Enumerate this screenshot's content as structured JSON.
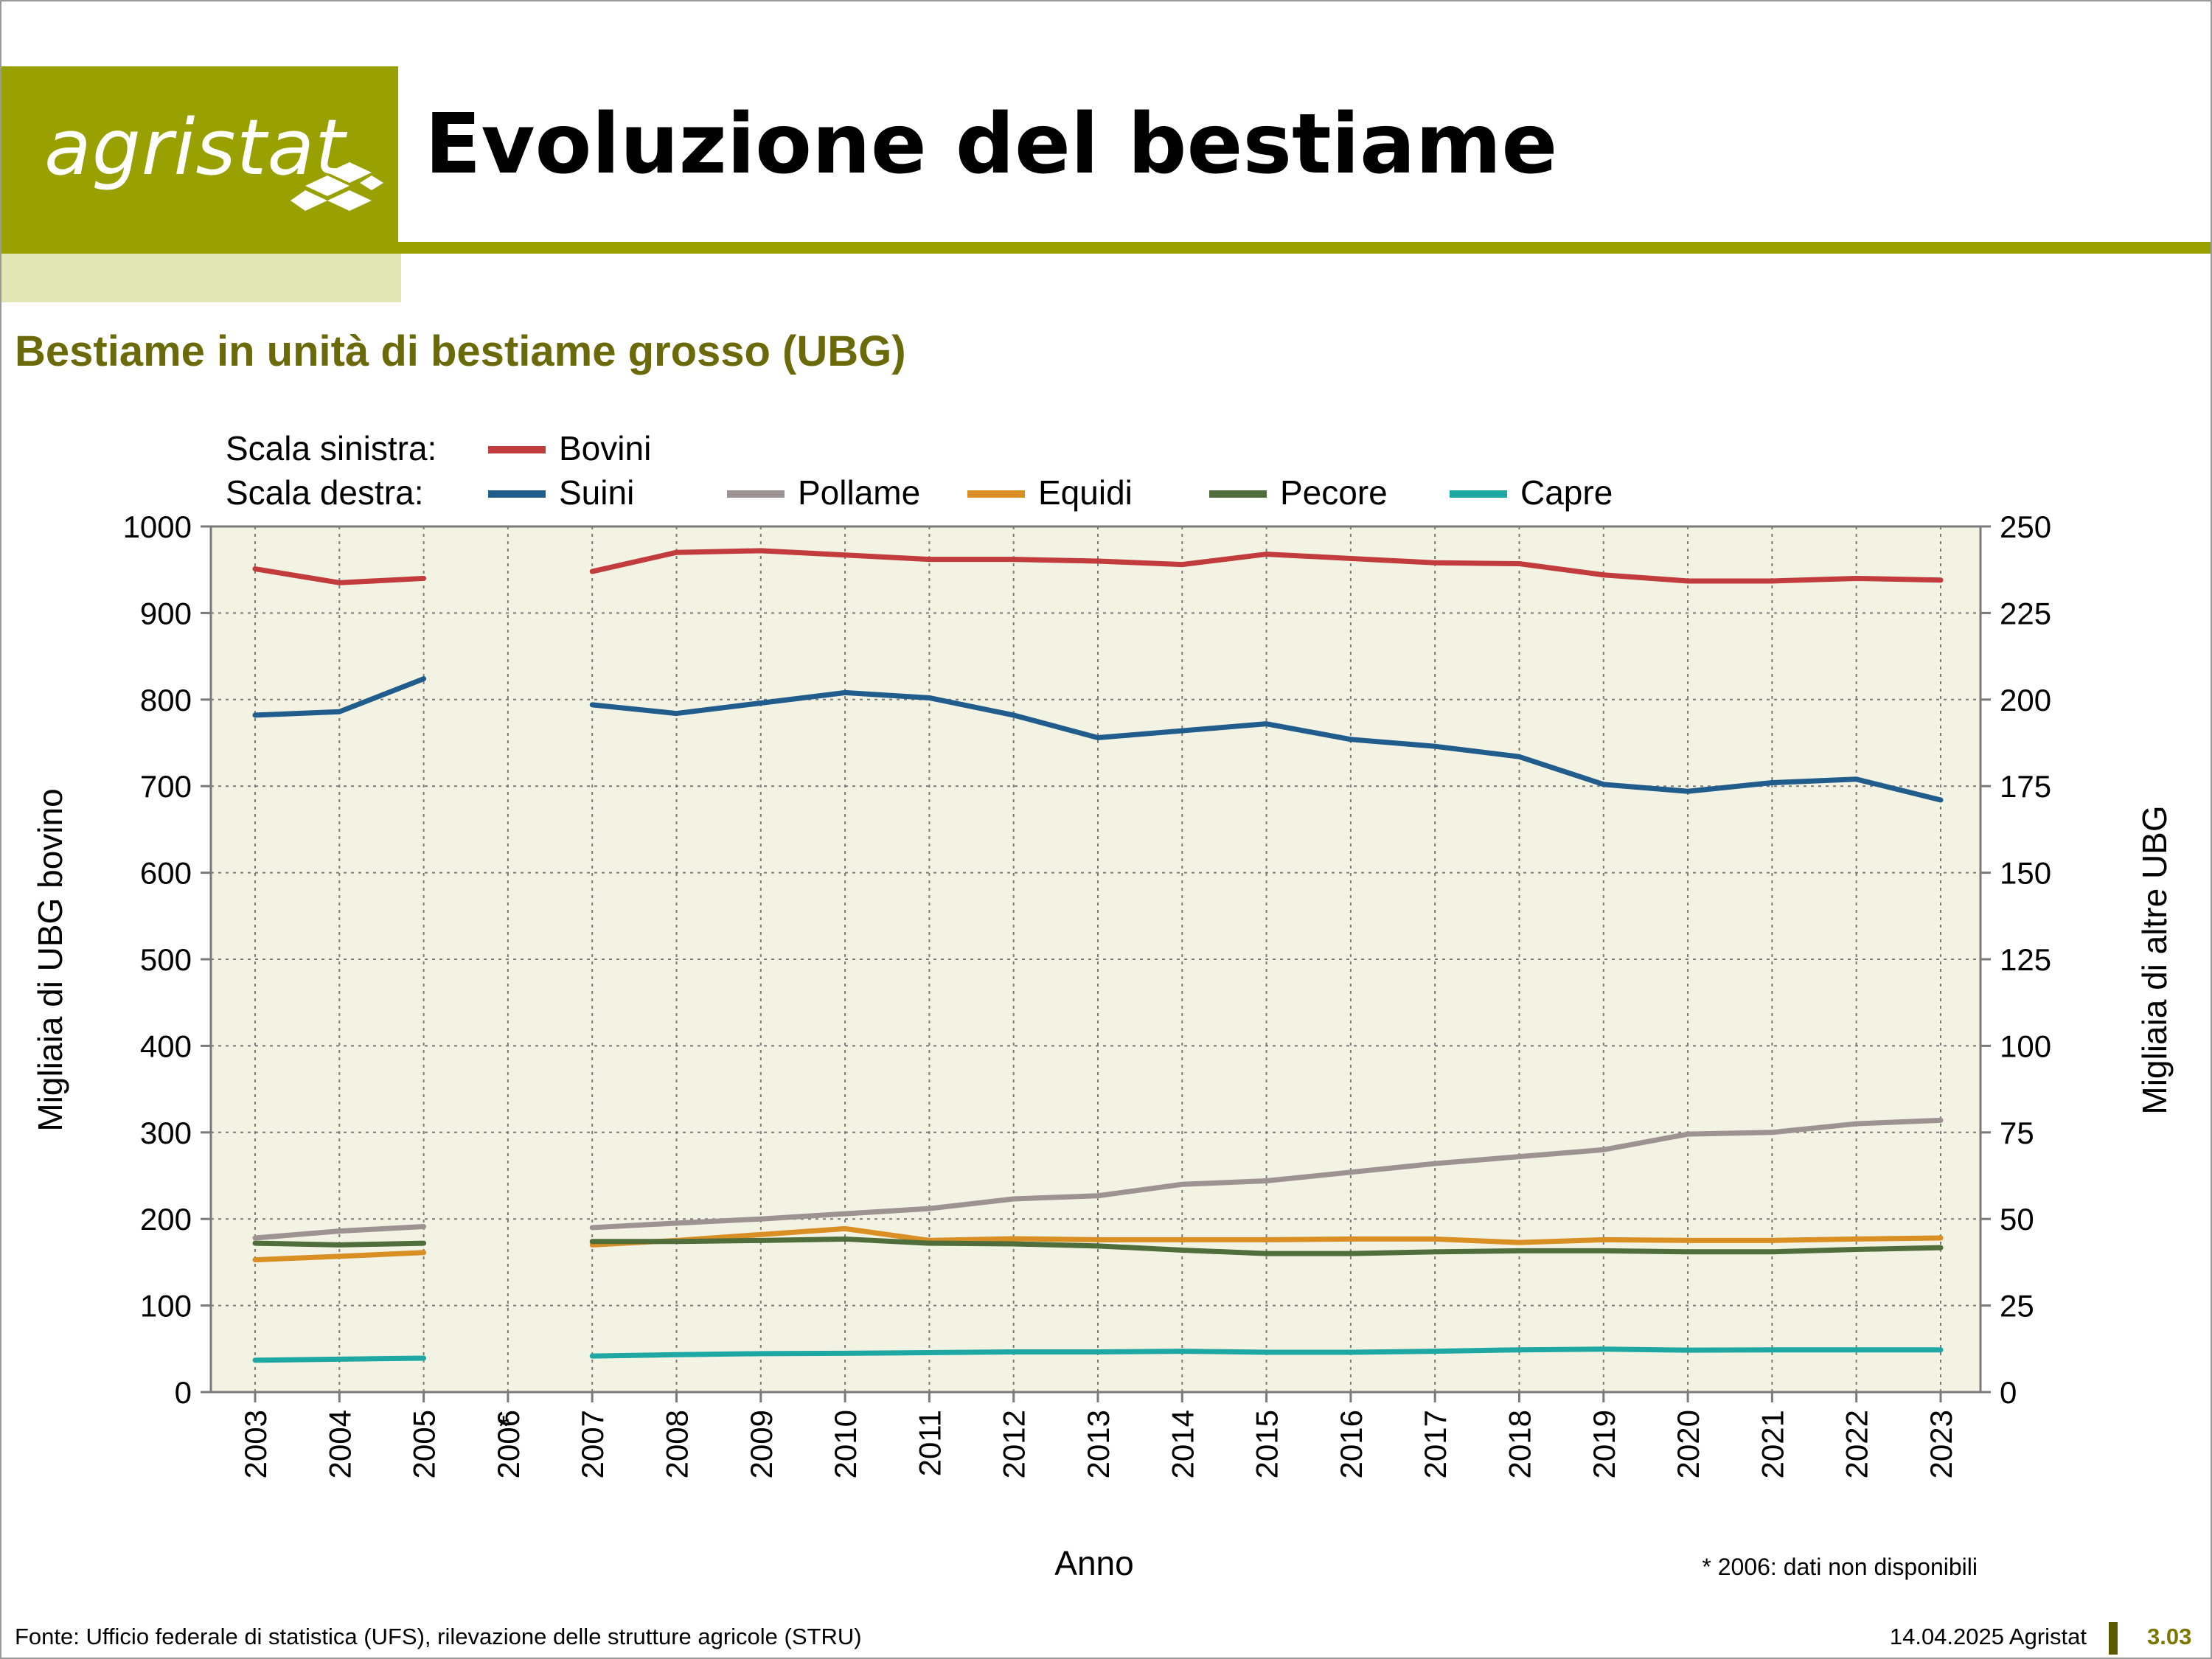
{
  "header": {
    "logo_text": "agristat",
    "title": "Evoluzione del bestiame",
    "brand_color": "#99a100"
  },
  "chart_title": "Bestiame in unità di bestiame grosso (UBG)",
  "legend": {
    "left_scale_label": "Scala sinistra:",
    "right_scale_label": "Scala destra:"
  },
  "footnote": "* 2006: dati non disponibili",
  "footer": {
    "source": "Fonte: Ufficio federale di statistica (UFS), rilevazione delle strutture agricole (STRU)",
    "date": "14.04.2025 Agristat",
    "page": "3.03"
  },
  "chart_data": {
    "type": "line",
    "x": [
      "2003",
      "2004",
      "2005",
      "2006",
      "2007",
      "2008",
      "2009",
      "2010",
      "2011",
      "2012",
      "2013",
      "2014",
      "2015",
      "2016",
      "2017",
      "2018",
      "2019",
      "2020",
      "2021",
      "2022",
      "2023"
    ],
    "x_marked": "2006",
    "x_mark_symbol": "*",
    "xlabel": "Anno",
    "ylabel_left": "Migliaia di UBG bovino",
    "ylabel_right": "Migliaia di altre UBG",
    "ylim_left": [
      0,
      1000
    ],
    "ylim_right": [
      0,
      250
    ],
    "yticks_left": [
      "0",
      "100",
      "200",
      "300",
      "400",
      "500",
      "600",
      "700",
      "800",
      "900",
      "1000"
    ],
    "yticks_right": [
      "0",
      "25",
      "50",
      "75",
      "100",
      "125",
      "150",
      "175",
      "200",
      "225",
      "250"
    ],
    "grid": true,
    "plot_background": "#f3f3e3",
    "series": [
      {
        "name": "Bovini",
        "axis": "left",
        "color": "#c23b3d",
        "values": [
          951,
          935,
          940,
          null,
          948,
          970,
          972,
          967,
          962,
          962,
          960,
          956,
          968,
          963,
          958,
          957,
          944,
          937,
          937,
          940,
          938
        ]
      },
      {
        "name": "Suini",
        "axis": "right",
        "color": "#215d8c",
        "values": [
          195.5,
          196.5,
          206,
          null,
          198.5,
          196,
          199,
          202,
          200.5,
          195.5,
          189,
          191,
          193,
          188.5,
          186.5,
          183.5,
          175.5,
          173.5,
          176,
          177,
          171
        ]
      },
      {
        "name": "Pollame",
        "axis": "right",
        "color": "#9d9393",
        "values": [
          44.5,
          46.5,
          47.8,
          null,
          47.5,
          48.8,
          50,
          51.5,
          53,
          55.8,
          56.7,
          60,
          61,
          63.5,
          66,
          68,
          70,
          74.5,
          75,
          77.5,
          78.5
        ]
      },
      {
        "name": "Equidi",
        "axis": "right",
        "color": "#d98f24",
        "values": [
          38.2,
          39.2,
          40.3,
          null,
          42.5,
          43.8,
          45.5,
          47.2,
          43.8,
          44.3,
          44,
          44,
          44,
          44.2,
          44.2,
          43.2,
          44,
          43.8,
          43.8,
          44.2,
          44.5
        ]
      },
      {
        "name": "Pecore",
        "axis": "right",
        "color": "#4f6e3b",
        "values": [
          43,
          42.5,
          43,
          null,
          43.5,
          43.5,
          43.8,
          44.2,
          43,
          42.8,
          42.2,
          41,
          40,
          40,
          40.5,
          40.8,
          40.8,
          40.5,
          40.5,
          41.2,
          41.7
        ]
      },
      {
        "name": "Capre",
        "axis": "right",
        "color": "#1fa8a3",
        "values": [
          9.2,
          9.5,
          9.8,
          null,
          10.4,
          10.8,
          11.1,
          11.2,
          11.4,
          11.6,
          11.6,
          11.8,
          11.5,
          11.5,
          11.8,
          12.2,
          12.4,
          12.1,
          12.2,
          12.2,
          12.2
        ]
      }
    ]
  }
}
